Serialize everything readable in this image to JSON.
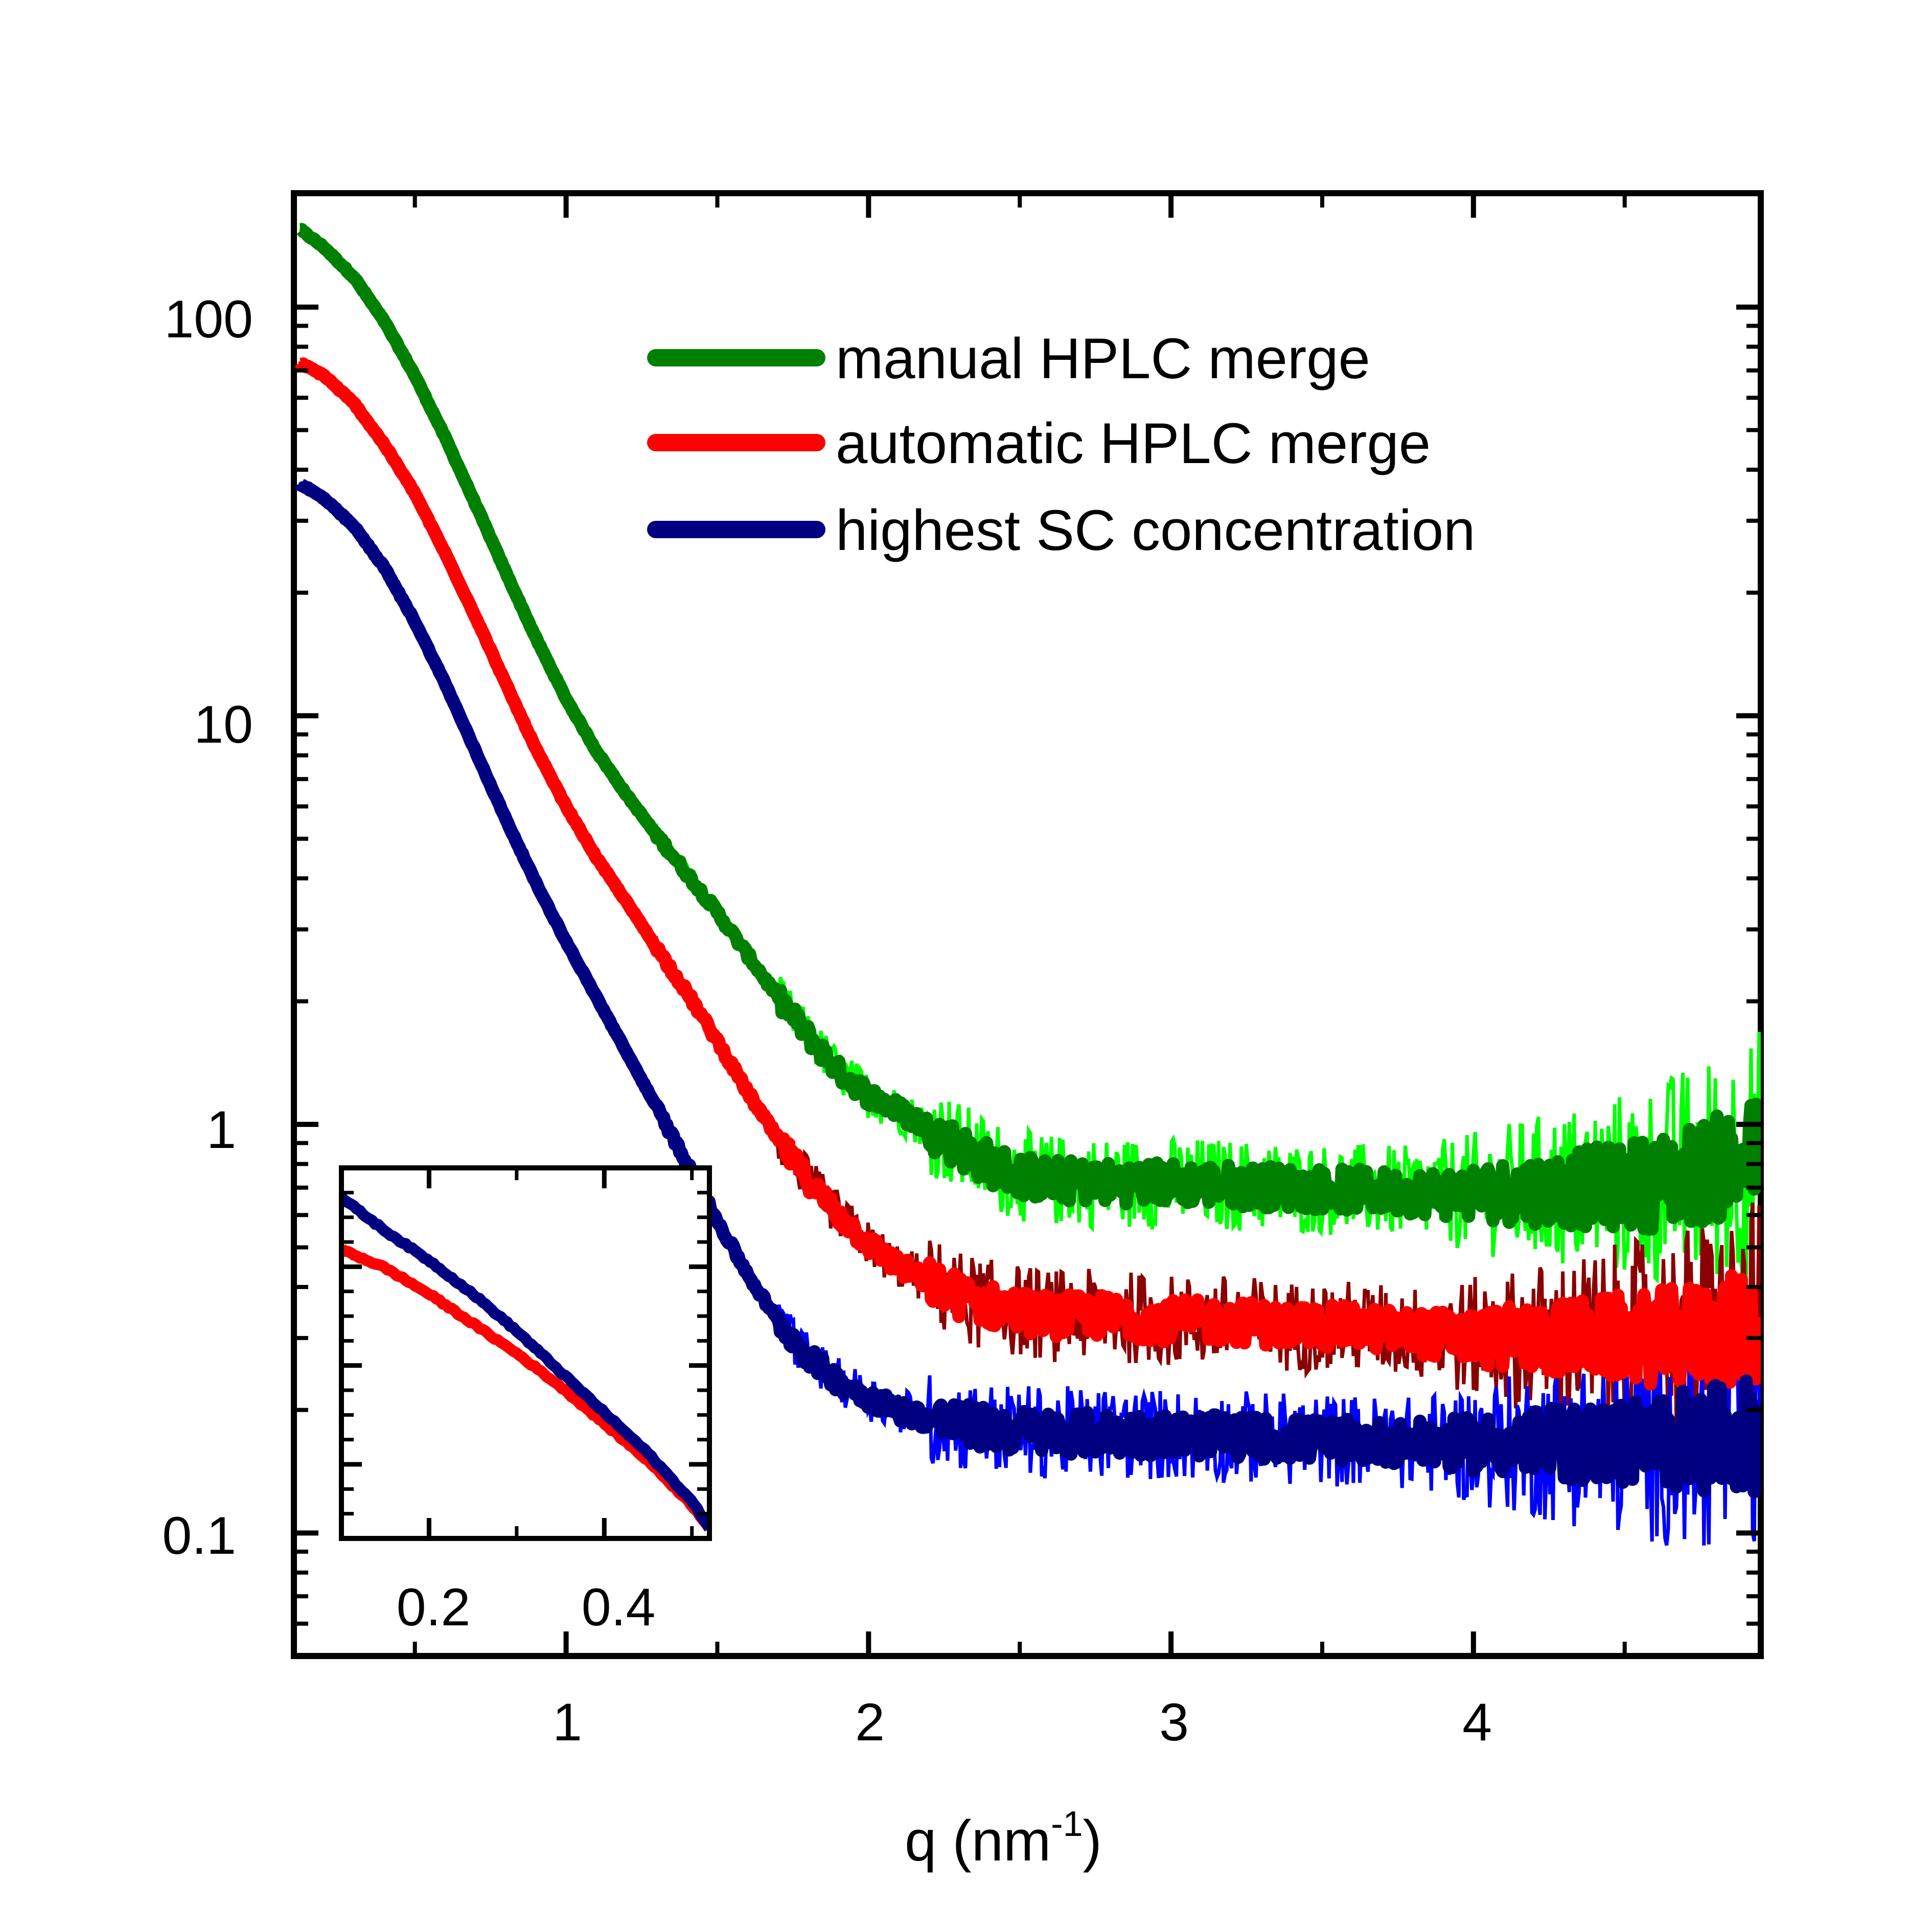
{
  "chart_data": {
    "type": "line",
    "main": {
      "xlabel": "q (nm",
      "xlabel_superscript": "-1",
      "xlabel_suffix": ")",
      "ylabel": "",
      "xlim": [
        0.1,
        4.95
      ],
      "ylim": [
        0.05,
        190
      ],
      "yscale": "log",
      "xticks": [
        "1",
        "2",
        "3",
        "4"
      ],
      "yticks": [
        "0.1",
        "1",
        "10",
        "100"
      ],
      "grid": false,
      "legend_position": "top-right",
      "series": [
        {
          "name": "manual HPLC merge",
          "color": "#008000",
          "noise_color": "#00ff00",
          "x": [
            0.12,
            0.2,
            0.3,
            0.4,
            0.5,
            0.6,
            0.7,
            0.8,
            0.9,
            1.0,
            1.1,
            1.2,
            1.3,
            1.4,
            1.5,
            1.6,
            1.7,
            1.8,
            1.9,
            2.0,
            2.1,
            2.2,
            2.3,
            2.4,
            2.5,
            2.6,
            2.8,
            3.0,
            3.2,
            3.4,
            3.6,
            3.8,
            4.0,
            4.2,
            4.4,
            4.6,
            4.8,
            4.95
          ],
          "y": [
            155,
            140,
            118,
            92,
            68,
            48,
            33,
            22.5,
            15.5,
            11,
            8.2,
            6.4,
            5.1,
            4.1,
            3.3,
            2.6,
            2.05,
            1.65,
            1.35,
            1.18,
            1.08,
            0.98,
            0.88,
            0.8,
            0.75,
            0.73,
            0.72,
            0.72,
            0.71,
            0.7,
            0.69,
            0.68,
            0.68,
            0.69,
            0.7,
            0.72,
            0.78,
            0.85
          ]
        },
        {
          "name": "automatic HPLC merge",
          "color": "#ff0000",
          "noise_color": "#8b0000",
          "x": [
            0.12,
            0.2,
            0.3,
            0.4,
            0.5,
            0.6,
            0.7,
            0.8,
            0.9,
            1.0,
            1.1,
            1.2,
            1.3,
            1.4,
            1.5,
            1.6,
            1.7,
            1.8,
            1.9,
            2.0,
            2.1,
            2.2,
            2.3,
            2.4,
            2.5,
            2.6,
            2.8,
            3.0,
            3.2,
            3.4,
            3.6,
            3.8,
            4.0,
            4.2,
            4.4,
            4.6,
            4.8,
            4.95
          ],
          "y": [
            73,
            68,
            58,
            46,
            35,
            25,
            17.5,
            12,
            8.3,
            6,
            4.5,
            3.5,
            2.7,
            2.1,
            1.6,
            1.2,
            0.92,
            0.73,
            0.6,
            0.51,
            0.45,
            0.41,
            0.38,
            0.36,
            0.35,
            0.34,
            0.34,
            0.33,
            0.33,
            0.32,
            0.32,
            0.31,
            0.3,
            0.3,
            0.3,
            0.3,
            0.31,
            0.32
          ]
        },
        {
          "name": "highest SC concentration",
          "color": "#000080",
          "noise_color": "#0000ff",
          "x": [
            0.12,
            0.2,
            0.3,
            0.4,
            0.5,
            0.6,
            0.7,
            0.8,
            0.9,
            1.0,
            1.1,
            1.2,
            1.3,
            1.4,
            1.5,
            1.6,
            1.7,
            1.8,
            1.9,
            2.0,
            2.1,
            2.2,
            2.3,
            2.4,
            2.5,
            2.6,
            2.8,
            3.0,
            3.2,
            3.4,
            3.6,
            3.8,
            4.0,
            4.2,
            4.4,
            4.6,
            4.8,
            4.95
          ],
          "y": [
            37,
            34,
            29,
            23,
            17,
            12,
            8.2,
            5.6,
            3.9,
            2.8,
            2.05,
            1.5,
            1.1,
            0.8,
            0.58,
            0.43,
            0.33,
            0.27,
            0.235,
            0.215,
            0.2,
            0.19,
            0.185,
            0.18,
            0.178,
            0.176,
            0.175,
            0.174,
            0.172,
            0.17,
            0.168,
            0.166,
            0.165,
            0.165,
            0.166,
            0.168,
            0.17,
            0.175
          ]
        }
      ]
    },
    "inset": {
      "xlim": [
        0.1,
        0.52
      ],
      "xticks": [
        "0.2",
        "0.4"
      ],
      "series": [
        {
          "color": "#ff0000",
          "x": [
            0.1,
            0.15,
            0.2,
            0.25,
            0.3,
            0.35,
            0.4,
            0.45,
            0.5,
            0.52
          ],
          "y": [
            0.78,
            0.73,
            0.66,
            0.58,
            0.5,
            0.41,
            0.31,
            0.21,
            0.09,
            0.03
          ]
        },
        {
          "color": "#000080",
          "x": [
            0.1,
            0.15,
            0.2,
            0.25,
            0.3,
            0.35,
            0.4,
            0.45,
            0.5,
            0.52
          ],
          "y": [
            0.92,
            0.83,
            0.75,
            0.66,
            0.56,
            0.45,
            0.34,
            0.23,
            0.1,
            0.03
          ]
        }
      ]
    }
  }
}
